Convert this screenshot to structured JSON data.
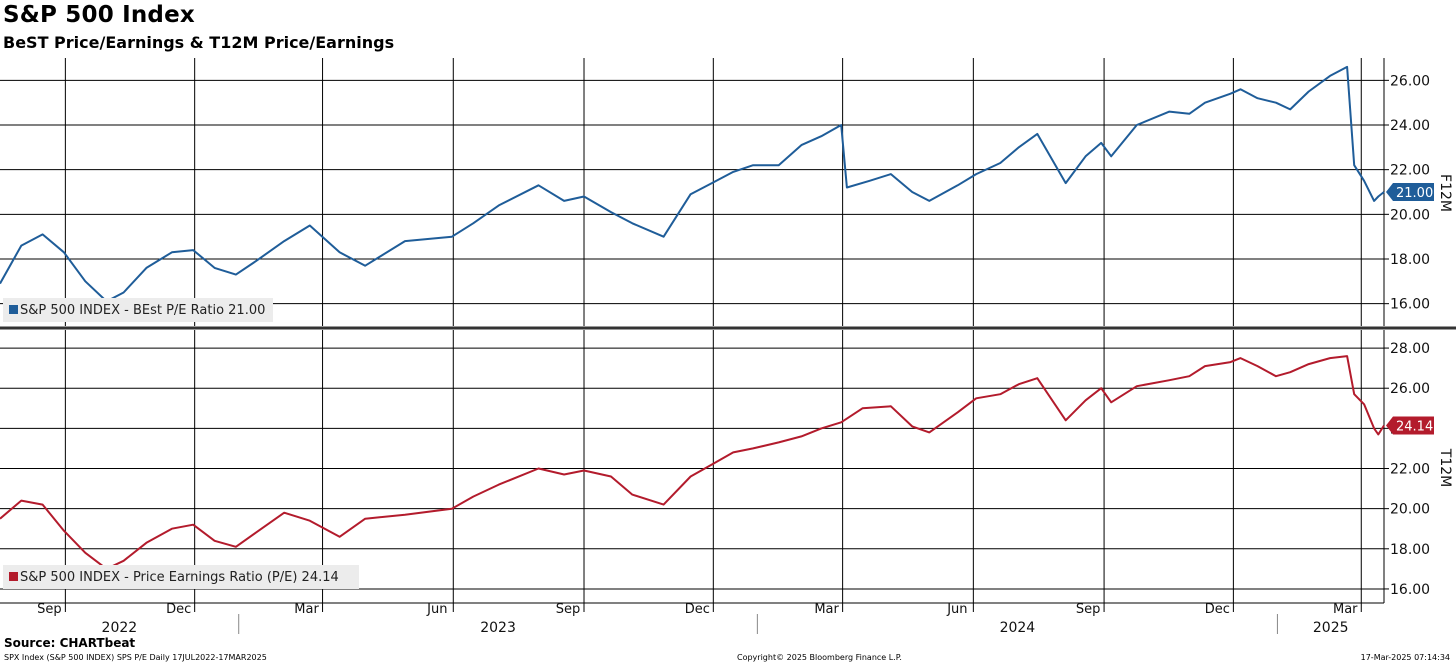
{
  "title": "S&P 500 Index",
  "subtitle": "BeST Price/Earnings & T12M Price/Earnings",
  "source": "Source: CHARTbeat",
  "footer": {
    "left": "SPX Index (S&P 500 INDEX) SPS P/E  Daily 17JUL2022-17MAR2025",
    "center": "Copyright© 2025 Bloomberg Finance L.P.",
    "right": "17-Mar-2025 07:14:34"
  },
  "chart_data": [
    {
      "type": "line",
      "name": "top-panel",
      "side_label": "F12M",
      "legend": "S&P 500 INDEX - BEst P/E Ratio 21.00",
      "color": "#1f5d99",
      "last_value_label": "21.00",
      "ylim": [
        15.0,
        27.0
      ],
      "yticks": [
        16,
        18,
        20,
        22,
        24,
        26
      ],
      "ytick_labels": [
        "16.00",
        "18.00",
        "20.00",
        "22.00",
        "24.00",
        "26.00"
      ],
      "series": [
        {
          "x": [
            "2022-07-17",
            "2022-08-01",
            "2022-08-16",
            "2022-08-31",
            "2022-09-15",
            "2022-09-30",
            "2022-10-12",
            "2022-10-28",
            "2022-11-15",
            "2022-11-30",
            "2022-12-15",
            "2022-12-30",
            "2023-01-13",
            "2023-02-02",
            "2023-02-20",
            "2023-03-13",
            "2023-03-31",
            "2023-04-28",
            "2023-05-31",
            "2023-06-15",
            "2023-07-03",
            "2023-07-31",
            "2023-08-18",
            "2023-09-01",
            "2023-09-20",
            "2023-10-05",
            "2023-10-27",
            "2023-11-15",
            "2023-11-30",
            "2023-12-15",
            "2023-12-29",
            "2024-01-16",
            "2024-02-01",
            "2024-02-15",
            "2024-02-29",
            "2024-03-04",
            "2024-03-20",
            "2024-04-04",
            "2024-04-19",
            "2024-05-01",
            "2024-05-21",
            "2024-06-03",
            "2024-06-20",
            "2024-07-03",
            "2024-07-16",
            "2024-08-05",
            "2024-08-19",
            "2024-08-30",
            "2024-09-06",
            "2024-09-24",
            "2024-10-17",
            "2024-10-31",
            "2024-11-11",
            "2024-11-29",
            "2024-12-06",
            "2024-12-18",
            "2024-12-31",
            "2025-01-10",
            "2025-01-23",
            "2025-02-07",
            "2025-02-19",
            "2025-02-24",
            "2025-03-03",
            "2025-03-10",
            "2025-03-13",
            "2025-03-17"
          ],
          "y": [
            16.9,
            18.6,
            19.1,
            18.3,
            17.0,
            16.1,
            16.5,
            17.6,
            18.3,
            18.4,
            17.6,
            17.3,
            17.9,
            18.8,
            19.5,
            18.3,
            17.7,
            18.8,
            19.0,
            19.6,
            20.4,
            21.3,
            20.6,
            20.8,
            20.1,
            19.6,
            19.0,
            20.9,
            21.4,
            21.9,
            22.2,
            22.2,
            23.1,
            23.5,
            24.0,
            21.2,
            21.5,
            21.8,
            21.0,
            20.6,
            21.3,
            21.8,
            22.3,
            23.0,
            23.6,
            21.4,
            22.6,
            23.2,
            22.6,
            24.0,
            24.6,
            24.5,
            25.0,
            25.4,
            25.6,
            25.2,
            25.0,
            24.7,
            25.5,
            26.2,
            26.6,
            22.2,
            21.5,
            20.6,
            20.8,
            21.0
          ]
        }
      ]
    },
    {
      "type": "line",
      "name": "bottom-panel",
      "side_label": "T12M",
      "legend": "S&P 500 INDEX - Price Earnings Ratio (P/E) 24.14",
      "color": "#b31b2c",
      "last_value_label": "24.14",
      "ylim": [
        15.3,
        28.9
      ],
      "yticks": [
        16,
        18,
        20,
        22,
        24,
        26,
        28
      ],
      "ytick_labels": [
        "16.00",
        "18.00",
        "20.00",
        "22.00",
        "24.00",
        "26.00",
        "28.00"
      ],
      "series": [
        {
          "x": [
            "2022-07-17",
            "2022-08-01",
            "2022-08-16",
            "2022-08-31",
            "2022-09-15",
            "2022-09-30",
            "2022-10-12",
            "2022-10-28",
            "2022-11-15",
            "2022-11-30",
            "2022-12-15",
            "2022-12-30",
            "2023-01-13",
            "2023-02-02",
            "2023-02-20",
            "2023-03-13",
            "2023-03-31",
            "2023-04-28",
            "2023-05-31",
            "2023-06-15",
            "2023-07-03",
            "2023-07-31",
            "2023-08-18",
            "2023-09-01",
            "2023-09-20",
            "2023-10-05",
            "2023-10-27",
            "2023-11-15",
            "2023-11-30",
            "2023-12-15",
            "2023-12-29",
            "2024-01-16",
            "2024-02-01",
            "2024-02-15",
            "2024-02-29",
            "2024-03-15",
            "2024-04-04",
            "2024-04-19",
            "2024-05-01",
            "2024-05-21",
            "2024-06-03",
            "2024-06-20",
            "2024-07-03",
            "2024-07-16",
            "2024-08-05",
            "2024-08-19",
            "2024-08-30",
            "2024-09-06",
            "2024-09-24",
            "2024-10-17",
            "2024-10-31",
            "2024-11-11",
            "2024-11-29",
            "2024-12-06",
            "2024-12-18",
            "2024-12-31",
            "2025-01-10",
            "2025-01-23",
            "2025-02-07",
            "2025-02-19",
            "2025-02-24",
            "2025-03-03",
            "2025-03-10",
            "2025-03-13",
            "2025-03-17"
          ],
          "y": [
            19.5,
            20.4,
            20.2,
            18.9,
            17.8,
            17.0,
            17.4,
            18.3,
            19.0,
            19.2,
            18.4,
            18.1,
            18.8,
            19.8,
            19.4,
            18.6,
            19.5,
            19.7,
            20.0,
            20.6,
            21.2,
            22.0,
            21.7,
            21.9,
            21.6,
            20.7,
            20.2,
            21.6,
            22.2,
            22.8,
            23.0,
            23.3,
            23.6,
            24.0,
            24.3,
            25.0,
            25.1,
            24.1,
            23.8,
            24.8,
            25.5,
            25.7,
            26.2,
            26.5,
            24.4,
            25.4,
            26.0,
            25.3,
            26.1,
            26.4,
            26.6,
            27.1,
            27.3,
            27.5,
            27.1,
            26.6,
            26.8,
            27.2,
            27.5,
            27.6,
            25.7,
            25.2,
            24.0,
            23.7,
            24.14
          ]
        }
      ]
    }
  ],
  "x_axis": {
    "start": "2022-07-17",
    "end": "2025-03-17",
    "month_ticks": [
      {
        "date": "2022-09-01",
        "label": "Sep"
      },
      {
        "date": "2022-12-01",
        "label": "Dec"
      },
      {
        "date": "2023-03-01",
        "label": "Mar"
      },
      {
        "date": "2023-06-01",
        "label": "Jun"
      },
      {
        "date": "2023-09-01",
        "label": "Sep"
      },
      {
        "date": "2023-12-01",
        "label": "Dec"
      },
      {
        "date": "2024-03-01",
        "label": "Mar"
      },
      {
        "date": "2024-06-01",
        "label": "Jun"
      },
      {
        "date": "2024-09-01",
        "label": "Sep"
      },
      {
        "date": "2024-12-01",
        "label": "Dec"
      },
      {
        "date": "2025-03-01",
        "label": "Mar"
      }
    ],
    "year_ticks": [
      {
        "label": "2022",
        "from": "2022-07-17",
        "to": "2023-01-01"
      },
      {
        "label": "2023",
        "from": "2023-01-01",
        "to": "2024-01-01"
      },
      {
        "label": "2024",
        "from": "2024-01-01",
        "to": "2025-01-01"
      },
      {
        "label": "2025",
        "from": "2025-01-01",
        "to": "2025-03-17"
      }
    ]
  }
}
